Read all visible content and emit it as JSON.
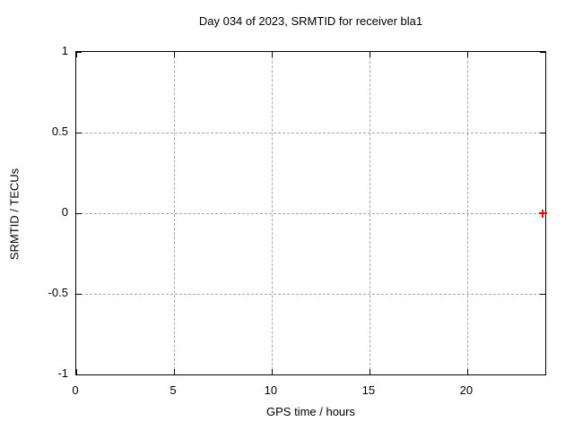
{
  "chart_data": {
    "type": "scatter",
    "title": "Day 034 of 2023, SRMTID for receiver bla1",
    "xlabel": "GPS time / hours",
    "ylabel": "SRMTID / TECUs",
    "xlim": [
      0,
      24
    ],
    "ylim": [
      -1,
      1
    ],
    "xticks": [
      {
        "value": 0,
        "label": "0"
      },
      {
        "value": 5,
        "label": "5"
      },
      {
        "value": 10,
        "label": "10"
      },
      {
        "value": 15,
        "label": "15"
      },
      {
        "value": 20,
        "label": "20"
      }
    ],
    "yticks": [
      {
        "value": -1,
        "label": "-1"
      },
      {
        "value": -0.5,
        "label": "-0.5"
      },
      {
        "value": 0,
        "label": "0"
      },
      {
        "value": 0.5,
        "label": "0.5"
      },
      {
        "value": 1,
        "label": "1"
      }
    ],
    "grid": true,
    "legend_position": "none",
    "colors": {
      "axis": "#000000",
      "grid": "#a8a8a8",
      "background": "#ffffff",
      "series": "#ff0000"
    },
    "series": [
      {
        "name": "SRMTID",
        "marker": "plus",
        "color": "#ff0000",
        "points": [
          {
            "x": 23.87,
            "y": 0
          }
        ]
      }
    ]
  }
}
